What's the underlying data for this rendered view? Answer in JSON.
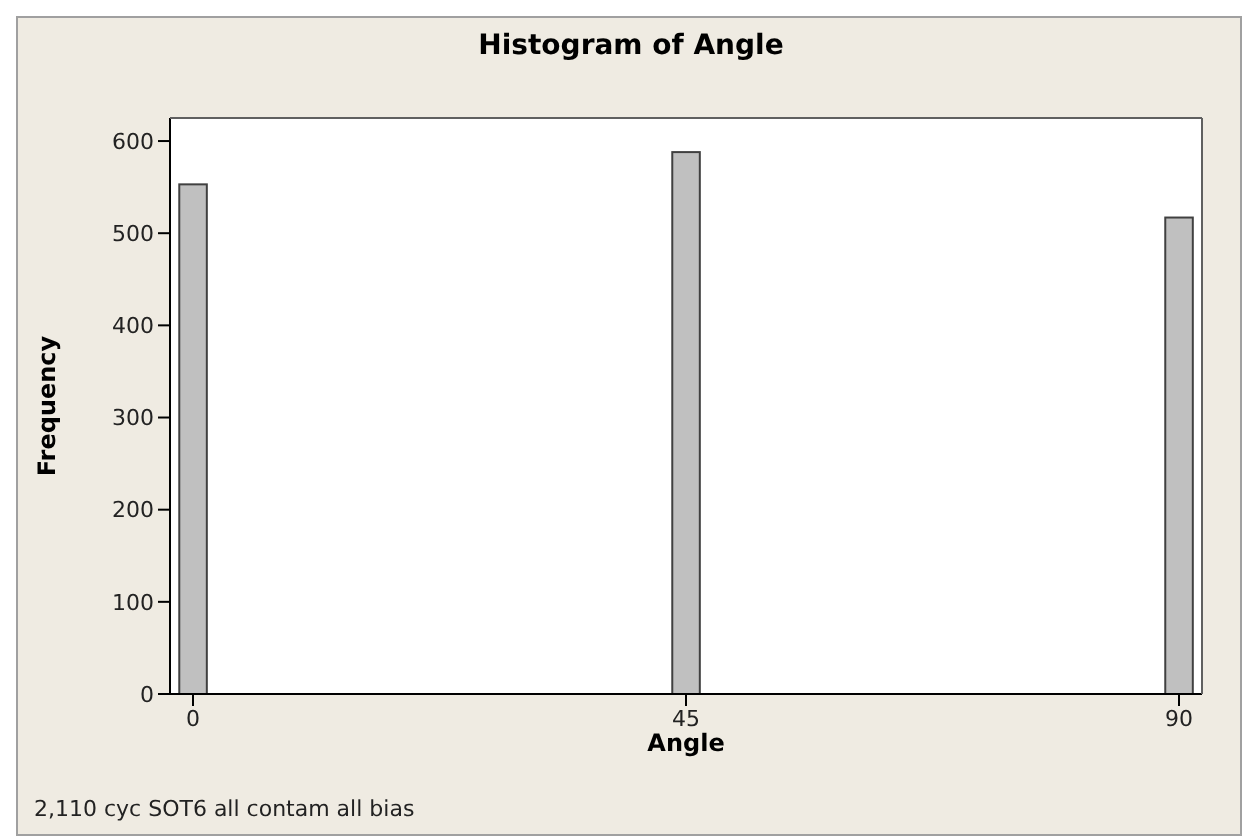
{
  "chart_data": {
    "type": "histogram",
    "title": "Histogram of Angle",
    "xlabel": "Angle",
    "ylabel": "Frequency",
    "bins": [
      -1.25,
      1.25,
      3.75,
      6.25,
      8.75,
      11.25,
      13.75,
      16.25,
      18.75,
      21.25,
      23.75,
      26.25,
      28.75,
      31.25,
      33.75,
      36.25,
      38.75,
      41.25,
      43.75,
      46.25,
      48.75,
      51.25,
      53.75,
      56.25,
      58.75,
      61.25,
      63.75,
      66.25,
      68.75,
      71.25,
      73.75,
      76.25,
      78.75,
      81.25,
      83.75,
      86.25,
      88.75,
      91.25
    ],
    "values": [
      553,
      0,
      0,
      0,
      0,
      0,
      0,
      0,
      0,
      0,
      0,
      0,
      0,
      0,
      0,
      0,
      0,
      0,
      588,
      0,
      0,
      0,
      0,
      0,
      0,
      0,
      0,
      0,
      0,
      0,
      0,
      0,
      0,
      0,
      0,
      0,
      517
    ],
    "color": "#c0c0c0",
    "xlim": [
      -2.1,
      92.1
    ],
    "xticks": [
      0,
      45,
      90
    ],
    "ylim": [
      0,
      625
    ],
    "yticks": [
      0,
      100,
      200,
      300,
      400,
      500,
      600
    ],
    "annotations": [
      "2,110 cyc SOT6 all contam all bias"
    ]
  }
}
